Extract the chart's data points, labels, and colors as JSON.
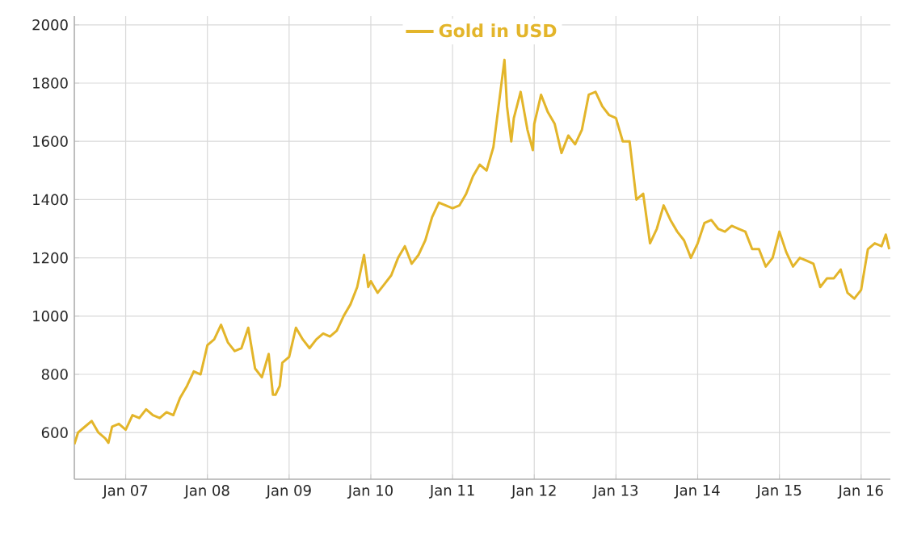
{
  "chart_data": {
    "type": "line",
    "legend": "top",
    "grid": true,
    "line_style": "solid",
    "marker": "none",
    "xlim": [
      "2006-05-15",
      "2016-05-10"
    ],
    "ylim": [
      440,
      2030
    ],
    "xticks": [
      {
        "value": "2007-01",
        "label": "Jan 07"
      },
      {
        "value": "2008-01",
        "label": "Jan 08"
      },
      {
        "value": "2009-01",
        "label": "Jan 09"
      },
      {
        "value": "2010-01",
        "label": "Jan 10"
      },
      {
        "value": "2011-01",
        "label": "Jan 11"
      },
      {
        "value": "2012-01",
        "label": "Jan 12"
      },
      {
        "value": "2013-01",
        "label": "Jan 13"
      },
      {
        "value": "2014-01",
        "label": "Jan 14"
      },
      {
        "value": "2015-01",
        "label": "Jan 15"
      },
      {
        "value": "2016-01",
        "label": "Jan 16"
      }
    ],
    "yticks": [
      600,
      800,
      1000,
      1200,
      1400,
      1600,
      1800,
      2000
    ],
    "x": [
      "2006-05-15",
      "2006-06",
      "2006-07",
      "2006-08",
      "2006-09",
      "2006-10",
      "2006-10-15",
      "2006-11",
      "2006-12",
      "2007-01",
      "2007-02",
      "2007-03",
      "2007-04",
      "2007-05",
      "2007-06",
      "2007-07",
      "2007-08",
      "2007-09",
      "2007-10",
      "2007-11",
      "2007-12",
      "2008-01",
      "2008-02",
      "2008-03",
      "2008-04",
      "2008-05",
      "2008-06",
      "2008-07",
      "2008-08",
      "2008-09",
      "2008-10",
      "2008-10-20",
      "2008-11",
      "2008-11-20",
      "2008-12",
      "2009-01",
      "2009-02",
      "2009-03",
      "2009-04",
      "2009-05",
      "2009-06",
      "2009-07",
      "2009-08",
      "2009-09",
      "2009-10",
      "2009-11",
      "2009-12-01",
      "2009-12-20",
      "2010-01",
      "2010-02",
      "2010-03",
      "2010-04",
      "2010-05",
      "2010-06",
      "2010-07",
      "2010-08",
      "2010-09",
      "2010-10",
      "2010-11",
      "2010-12",
      "2011-01",
      "2011-02",
      "2011-03",
      "2011-04",
      "2011-05",
      "2011-06",
      "2011-07",
      "2011-08-20",
      "2011-09",
      "2011-09-20",
      "2011-10",
      "2011-11",
      "2011-12",
      "2011-12-25",
      "2012-01",
      "2012-02",
      "2012-03",
      "2012-04",
      "2012-05",
      "2012-06",
      "2012-07",
      "2012-08",
      "2012-09",
      "2012-10",
      "2012-11",
      "2012-12",
      "2013-01",
      "2013-02",
      "2013-03",
      "2013-04",
      "2013-05",
      "2013-06",
      "2013-07",
      "2013-08",
      "2013-09",
      "2013-10",
      "2013-11",
      "2013-12",
      "2014-01",
      "2014-02",
      "2014-03",
      "2014-04",
      "2014-05",
      "2014-06",
      "2014-07",
      "2014-08",
      "2014-09",
      "2014-10",
      "2014-11",
      "2014-12",
      "2015-01",
      "2015-02",
      "2015-03",
      "2015-04",
      "2015-05",
      "2015-06",
      "2015-07",
      "2015-08",
      "2015-09",
      "2015-10",
      "2015-11",
      "2015-12",
      "2016-01",
      "2016-02",
      "2016-03",
      "2016-04",
      "2016-04-20",
      "2016-05-05"
    ],
    "series": [
      {
        "name": "Gold in USD",
        "color": "#e3b52a",
        "values": [
          560,
          600,
          620,
          640,
          600,
          580,
          565,
          620,
          630,
          610,
          660,
          650,
          680,
          660,
          650,
          670,
          660,
          720,
          760,
          810,
          800,
          900,
          920,
          970,
          910,
          880,
          890,
          960,
          820,
          790,
          870,
          730,
          730,
          760,
          840,
          860,
          960,
          920,
          890,
          920,
          940,
          930,
          950,
          1000,
          1040,
          1100,
          1210,
          1100,
          1120,
          1080,
          1110,
          1140,
          1200,
          1240,
          1180,
          1210,
          1260,
          1340,
          1390,
          1380,
          1370,
          1380,
          1420,
          1480,
          1520,
          1500,
          1580,
          1880,
          1720,
          1600,
          1680,
          1770,
          1640,
          1570,
          1660,
          1760,
          1700,
          1660,
          1560,
          1620,
          1590,
          1640,
          1760,
          1770,
          1720,
          1690,
          1680,
          1600,
          1600,
          1400,
          1420,
          1250,
          1300,
          1380,
          1330,
          1290,
          1260,
          1200,
          1250,
          1320,
          1330,
          1300,
          1290,
          1310,
          1300,
          1290,
          1230,
          1230,
          1170,
          1200,
          1290,
          1220,
          1170,
          1200,
          1190,
          1180,
          1100,
          1130,
          1130,
          1160,
          1080,
          1060,
          1090,
          1230,
          1250,
          1240,
          1280,
          1230
        ]
      }
    ]
  }
}
